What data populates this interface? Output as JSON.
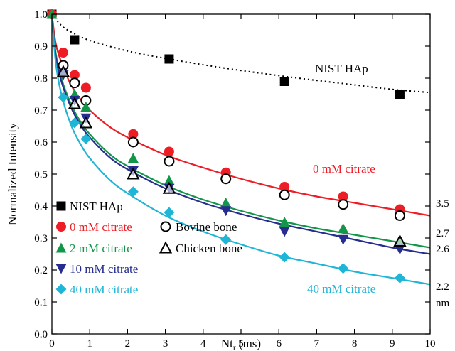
{
  "chart_data": {
    "type": "scatter",
    "xlabel": "Nt",
    "xlabel_subscript": "r",
    "xlabel_unit": "(ms)",
    "ylabel": "Normalized Intensity",
    "xlim": [
      0,
      10
    ],
    "ylim": [
      0,
      1.0
    ],
    "xticks": [
      "0",
      "1",
      "2",
      "3",
      "4",
      "5",
      "6",
      "7",
      "8",
      "9",
      "10"
    ],
    "yticks": [
      "0.0",
      "0.1",
      "0.2",
      "0.3",
      "0.4",
      "0.5",
      "0.6",
      "0.7",
      "0.8",
      "0.9",
      "1.0"
    ],
    "grid": false,
    "legend_position": "bottom-left",
    "series": [
      {
        "name": "NIST HAp",
        "color": "#000000",
        "marker": "square",
        "x": [
          0,
          0.6,
          3.1,
          6.15,
          9.2
        ],
        "y": [
          1.0,
          0.92,
          0.86,
          0.79,
          0.75
        ],
        "fit": {
          "style": "dotted",
          "color": "#000000",
          "x": [
            0,
            0.25,
            0.5,
            1,
            2,
            3,
            4,
            5,
            6,
            7,
            8,
            9,
            10
          ],
          "y": [
            1.0,
            0.965,
            0.945,
            0.918,
            0.885,
            0.862,
            0.842,
            0.824,
            0.808,
            0.793,
            0.779,
            0.765,
            0.755
          ]
        }
      },
      {
        "name": "0 mM citrate",
        "color": "#ee1c25",
        "marker": "circle",
        "x": [
          0,
          0.3,
          0.6,
          0.9,
          2.15,
          3.1,
          4.6,
          6.15,
          7.7,
          9.2
        ],
        "y": [
          1.0,
          0.88,
          0.81,
          0.77,
          0.625,
          0.57,
          0.505,
          0.46,
          0.43,
          0.39
        ],
        "fit": {
          "style": "solid",
          "color": "#ee1c25",
          "x": [
            0,
            0.1,
            0.25,
            0.5,
            0.75,
            1,
            1.5,
            2,
            3,
            4,
            5,
            6,
            7,
            8,
            9,
            10
          ],
          "y": [
            1.0,
            0.91,
            0.85,
            0.78,
            0.735,
            0.7,
            0.65,
            0.615,
            0.56,
            0.52,
            0.485,
            0.455,
            0.43,
            0.41,
            0.39,
            0.37
          ]
        }
      },
      {
        "name": "2 mM citrate",
        "color": "#14964a",
        "marker": "triangle-up",
        "x": [
          0,
          0.3,
          0.6,
          0.9,
          2.15,
          3.1,
          4.6,
          6.15,
          7.7,
          9.2
        ],
        "y": [
          1.0,
          0.82,
          0.75,
          0.71,
          0.55,
          0.48,
          0.41,
          0.35,
          0.33,
          0.29
        ],
        "fit": {
          "style": "solid",
          "color": "#14964a",
          "x": [
            0,
            0.1,
            0.25,
            0.5,
            0.75,
            1,
            1.5,
            2,
            3,
            4,
            5,
            6,
            7,
            8,
            9,
            10
          ],
          "y": [
            1.0,
            0.88,
            0.8,
            0.72,
            0.665,
            0.625,
            0.565,
            0.525,
            0.465,
            0.42,
            0.385,
            0.355,
            0.33,
            0.31,
            0.29,
            0.27
          ]
        }
      },
      {
        "name": "10 mM citrate",
        "color": "#262d8f",
        "marker": "triangle-down",
        "x": [
          0.3,
          0.6,
          0.9,
          2.15,
          3.1,
          4.6,
          6.15,
          7.7,
          9.2
        ],
        "y": [
          0.81,
          0.73,
          0.675,
          0.51,
          0.455,
          0.385,
          0.32,
          0.295,
          0.265
        ],
        "fit": {
          "style": "solid",
          "color": "#262d8f",
          "x": [
            0,
            0.1,
            0.25,
            0.5,
            0.75,
            1,
            1.5,
            2,
            3,
            4,
            5,
            6,
            7,
            8,
            9,
            10
          ],
          "y": [
            1.0,
            0.87,
            0.79,
            0.71,
            0.655,
            0.615,
            0.555,
            0.515,
            0.455,
            0.41,
            0.375,
            0.345,
            0.32,
            0.295,
            0.27,
            0.25
          ]
        }
      },
      {
        "name": "40 mM citrate",
        "color": "#1fb5d6",
        "marker": "diamond",
        "x": [
          0.3,
          0.6,
          0.9,
          2.15,
          3.1,
          4.6,
          6.15,
          7.7,
          9.2
        ],
        "y": [
          0.74,
          0.66,
          0.61,
          0.445,
          0.38,
          0.295,
          0.24,
          0.205,
          0.175
        ],
        "fit": {
          "style": "solid",
          "color": "#1fb5d6",
          "x": [
            0,
            0.1,
            0.25,
            0.5,
            0.75,
            1,
            1.5,
            2,
            3,
            4,
            5,
            6,
            7,
            8,
            9,
            10
          ],
          "y": [
            1.0,
            0.85,
            0.75,
            0.655,
            0.595,
            0.55,
            0.485,
            0.44,
            0.37,
            0.32,
            0.28,
            0.245,
            0.22,
            0.195,
            0.175,
            0.155
          ]
        }
      },
      {
        "name": "Bovine bone",
        "color": "#000000",
        "marker": "open-circle",
        "x": [
          0.3,
          0.6,
          0.9,
          2.15,
          3.1,
          4.6,
          6.15,
          7.7,
          9.2
        ],
        "y": [
          0.84,
          0.785,
          0.73,
          0.6,
          0.54,
          0.485,
          0.435,
          0.405,
          0.37
        ]
      },
      {
        "name": "Chicken bone",
        "color": "#000000",
        "marker": "open-triangle",
        "x": [
          0.3,
          0.6,
          0.9,
          2.15,
          3.1,
          9.2
        ],
        "y": [
          0.82,
          0.72,
          0.66,
          0.5,
          0.455,
          0.29
        ]
      }
    ],
    "annotations": [
      {
        "text": "NIST HAp",
        "color": "#000000"
      },
      {
        "text": "0 mM citrate",
        "color": "#ee1c25"
      },
      {
        "text": "40 mM citrate",
        "color": "#1fb5d6"
      }
    ],
    "right_labels": [
      "3.5",
      "2.7",
      "2.6",
      "2.2",
      "nm"
    ]
  }
}
